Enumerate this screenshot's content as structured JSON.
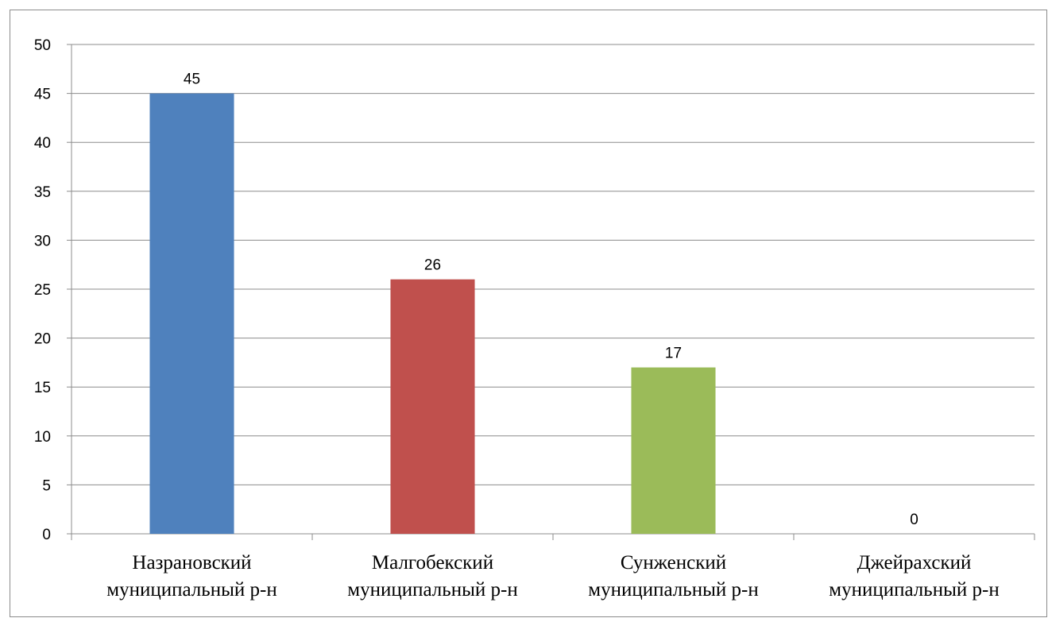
{
  "chart_data": {
    "type": "bar",
    "title": "",
    "xlabel": "",
    "ylabel": "",
    "ylim": [
      0,
      50
    ],
    "ytick_step": 5,
    "grid": true,
    "legend": "none",
    "categories": [
      [
        "Назрановский",
        "муниципальный р-н"
      ],
      [
        "Малгобекский",
        "муниципальный р-н"
      ],
      [
        "Сунженский",
        "муниципальный р-н"
      ],
      [
        "Джейрахский",
        "муниципальный р-н"
      ]
    ],
    "values": [
      45,
      26,
      17,
      0
    ],
    "colors": [
      "#4f81bd",
      "#c0504d",
      "#9bbb59",
      "#8064a2"
    ]
  }
}
